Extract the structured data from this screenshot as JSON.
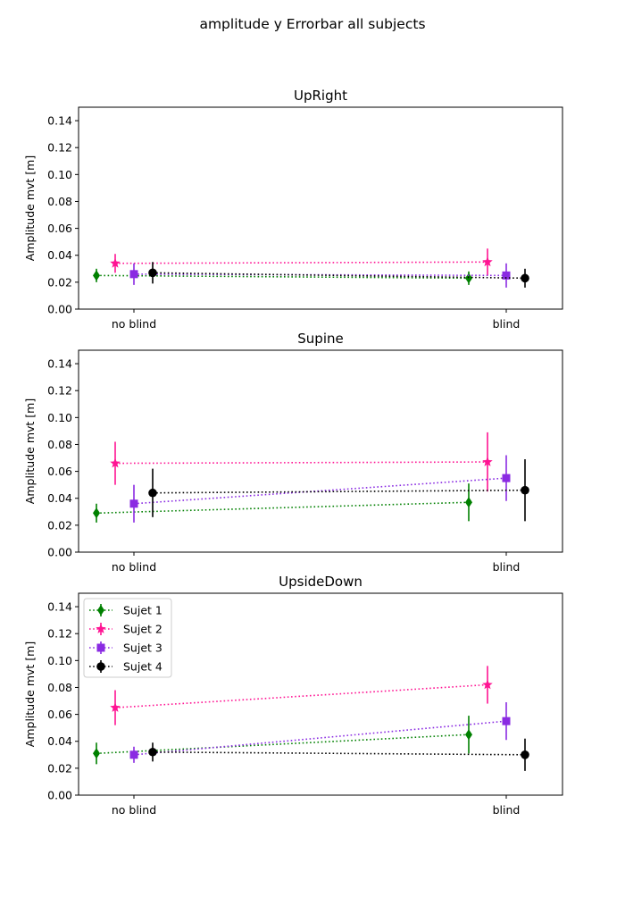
{
  "figure": {
    "suptitle": "amplitude y Errorbar all subjects"
  },
  "chart_data": [
    {
      "type": "line",
      "title": "UpRight",
      "ylabel": "Amplitude mvt [m]",
      "xlabel": "",
      "categories": [
        "no blind",
        "blind"
      ],
      "ylim": [
        0,
        0.15
      ],
      "yticks": [
        "0.00",
        "0.02",
        "0.04",
        "0.06",
        "0.08",
        "0.10",
        "0.12",
        "0.14"
      ],
      "grid": false,
      "legend": null,
      "series": [
        {
          "name": "Sujet 1",
          "color": "#008000",
          "marker": "diamond",
          "linestyle": "dotted",
          "values": [
            0.025,
            0.023
          ],
          "errors": [
            0.005,
            0.005
          ]
        },
        {
          "name": "Sujet 2",
          "color": "#ff1493",
          "marker": "star",
          "linestyle": "dotted",
          "values": [
            0.034,
            0.035
          ],
          "errors": [
            0.007,
            0.01
          ]
        },
        {
          "name": "Sujet 3",
          "color": "#8a2be2",
          "marker": "square",
          "linestyle": "dotted",
          "values": [
            0.026,
            0.025
          ],
          "errors": [
            0.008,
            0.009
          ]
        },
        {
          "name": "Sujet 4",
          "color": "#000000",
          "marker": "circle",
          "linestyle": "dotted",
          "values": [
            0.027,
            0.023
          ],
          "errors": [
            0.008,
            0.007
          ]
        }
      ]
    },
    {
      "type": "line",
      "title": "Supine",
      "ylabel": "Amplitude mvt [m]",
      "xlabel": "",
      "categories": [
        "no blind",
        "blind"
      ],
      "ylim": [
        0,
        0.15
      ],
      "yticks": [
        "0.00",
        "0.02",
        "0.04",
        "0.06",
        "0.08",
        "0.10",
        "0.12",
        "0.14"
      ],
      "grid": false,
      "legend": null,
      "series": [
        {
          "name": "Sujet 1",
          "color": "#008000",
          "marker": "diamond",
          "linestyle": "dotted",
          "values": [
            0.029,
            0.037
          ],
          "errors": [
            0.007,
            0.014
          ]
        },
        {
          "name": "Sujet 2",
          "color": "#ff1493",
          "marker": "star",
          "linestyle": "dotted",
          "values": [
            0.066,
            0.067
          ],
          "errors": [
            0.016,
            0.022
          ]
        },
        {
          "name": "Sujet 3",
          "color": "#8a2be2",
          "marker": "square",
          "linestyle": "dotted",
          "values": [
            0.036,
            0.055
          ],
          "errors": [
            0.014,
            0.017
          ]
        },
        {
          "name": "Sujet 4",
          "color": "#000000",
          "marker": "circle",
          "linestyle": "dotted",
          "values": [
            0.044,
            0.046
          ],
          "errors": [
            0.018,
            0.023
          ]
        }
      ]
    },
    {
      "type": "line",
      "title": "UpsideDown",
      "ylabel": "Amplitude mvt [m]",
      "xlabel": "",
      "categories": [
        "no blind",
        "blind"
      ],
      "ylim": [
        0,
        0.15
      ],
      "yticks": [
        "0.00",
        "0.02",
        "0.04",
        "0.06",
        "0.08",
        "0.10",
        "0.12",
        "0.14"
      ],
      "grid": false,
      "legend": "top-left",
      "series": [
        {
          "name": "Sujet 1",
          "color": "#008000",
          "marker": "diamond",
          "linestyle": "dotted",
          "values": [
            0.031,
            0.045
          ],
          "errors": [
            0.008,
            0.014
          ]
        },
        {
          "name": "Sujet 2",
          "color": "#ff1493",
          "marker": "star",
          "linestyle": "dotted",
          "values": [
            0.065,
            0.082
          ],
          "errors": [
            0.013,
            0.014
          ]
        },
        {
          "name": "Sujet 3",
          "color": "#8a2be2",
          "marker": "square",
          "linestyle": "dotted",
          "values": [
            0.03,
            0.055
          ],
          "errors": [
            0.006,
            0.014
          ]
        },
        {
          "name": "Sujet 4",
          "color": "#000000",
          "marker": "circle",
          "linestyle": "dotted",
          "values": [
            0.032,
            0.03
          ],
          "errors": [
            0.007,
            0.012
          ]
        }
      ]
    }
  ]
}
